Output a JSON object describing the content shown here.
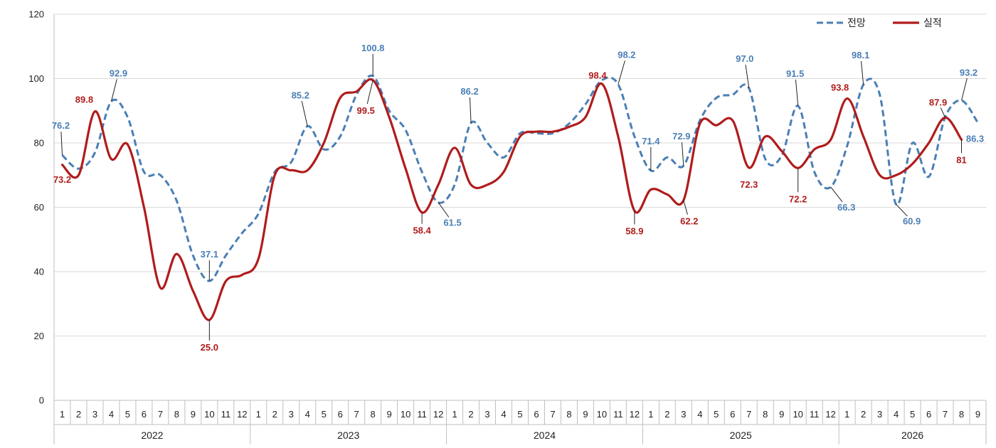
{
  "chart_data": {
    "type": "line",
    "ylim": [
      0,
      120
    ],
    "y_ticks": [
      0,
      20,
      40,
      60,
      80,
      100,
      120
    ],
    "grid": "horizontal",
    "legend_position": "top-right",
    "years": [
      {
        "label": "2022",
        "months": [
          "1",
          "2",
          "3",
          "4",
          "5",
          "6",
          "7",
          "8",
          "9",
          "10",
          "11",
          "12"
        ]
      },
      {
        "label": "2023",
        "months": [
          "1",
          "2",
          "3",
          "4",
          "5",
          "6",
          "7",
          "8",
          "9",
          "10",
          "11",
          "12"
        ]
      },
      {
        "label": "2024",
        "months": [
          "1",
          "2",
          "3",
          "4",
          "5",
          "6",
          "7",
          "8",
          "9",
          "10",
          "11",
          "12"
        ]
      },
      {
        "label": "2025",
        "months": [
          "1",
          "2",
          "3",
          "4",
          "5",
          "6",
          "7",
          "8",
          "9",
          "10",
          "11",
          "12"
        ]
      },
      {
        "label": "2026",
        "months": [
          "1",
          "2",
          "3",
          "4",
          "5",
          "6",
          "7",
          "8",
          "9"
        ]
      }
    ],
    "series": [
      {
        "name": "전망",
        "color": "#4a7fb5",
        "style": "dashed",
        "values": [
          76.2,
          72,
          77,
          92.9,
          88,
          71,
          70,
          62,
          45,
          37.1,
          45,
          52,
          58,
          71,
          74,
          85.2,
          78,
          82,
          95,
          100.8,
          90,
          84,
          71,
          61.5,
          67,
          86.2,
          80,
          75.5,
          83,
          83,
          83,
          86,
          92,
          99.5,
          98.2,
          82,
          71.4,
          75.5,
          72.9,
          87,
          94,
          95,
          97,
          75,
          76,
          91.5,
          71,
          66.3,
          79,
          98.1,
          95,
          60.9,
          80,
          69.5,
          88,
          93.2,
          86.3
        ],
        "labels": [
          {
            "i": 0,
            "text": "76.2"
          },
          {
            "i": 3,
            "text": "92.9"
          },
          {
            "i": 9,
            "text": "37.1"
          },
          {
            "i": 15,
            "text": "85.2"
          },
          {
            "i": 19,
            "text": "100.8"
          },
          {
            "i": 23,
            "text": "61.5"
          },
          {
            "i": 25,
            "text": "86.2"
          },
          {
            "i": 34,
            "text": "98.2"
          },
          {
            "i": 36,
            "text": "71.4"
          },
          {
            "i": 38,
            "text": "72.9"
          },
          {
            "i": 42,
            "text": "97.0"
          },
          {
            "i": 45,
            "text": "91.5"
          },
          {
            "i": 47,
            "text": "66.3"
          },
          {
            "i": 49,
            "text": "98.1"
          },
          {
            "i": 51,
            "text": "60.9"
          },
          {
            "i": 55,
            "text": "93.2"
          },
          {
            "i": 56,
            "text": "86.3"
          }
        ]
      },
      {
        "name": "실적",
        "color": "#b01c1c",
        "style": "solid",
        "values": [
          73.2,
          70,
          89.8,
          75,
          79.5,
          60,
          35,
          45.5,
          34,
          25,
          37,
          39,
          44,
          70,
          71.5,
          71.5,
          80,
          94,
          96,
          99.5,
          88,
          72,
          58.4,
          67,
          78.5,
          67,
          67,
          71,
          82,
          83.5,
          83.5,
          85,
          88,
          98.4,
          82,
          58.9,
          65.5,
          64,
          62.2,
          86,
          85.5,
          87,
          72.3,
          82,
          77.5,
          72.2,
          78,
          81,
          93.8,
          82,
          70,
          70,
          73.5,
          80,
          87.9,
          81
        ],
        "labels": [
          {
            "i": 0,
            "text": "73.2"
          },
          {
            "i": 2,
            "text": "89.8"
          },
          {
            "i": 9,
            "text": "25.0"
          },
          {
            "i": 19,
            "text": "99.5"
          },
          {
            "i": 22,
            "text": "58.4"
          },
          {
            "i": 33,
            "text": "98.4"
          },
          {
            "i": 35,
            "text": "58.9"
          },
          {
            "i": 38,
            "text": "62.2"
          },
          {
            "i": 42,
            "text": "72.3"
          },
          {
            "i": 45,
            "text": "72.2"
          },
          {
            "i": 48,
            "text": "93.8"
          },
          {
            "i": 54,
            "text": "87.9"
          },
          {
            "i": 55,
            "text": "81"
          }
        ]
      }
    ]
  }
}
